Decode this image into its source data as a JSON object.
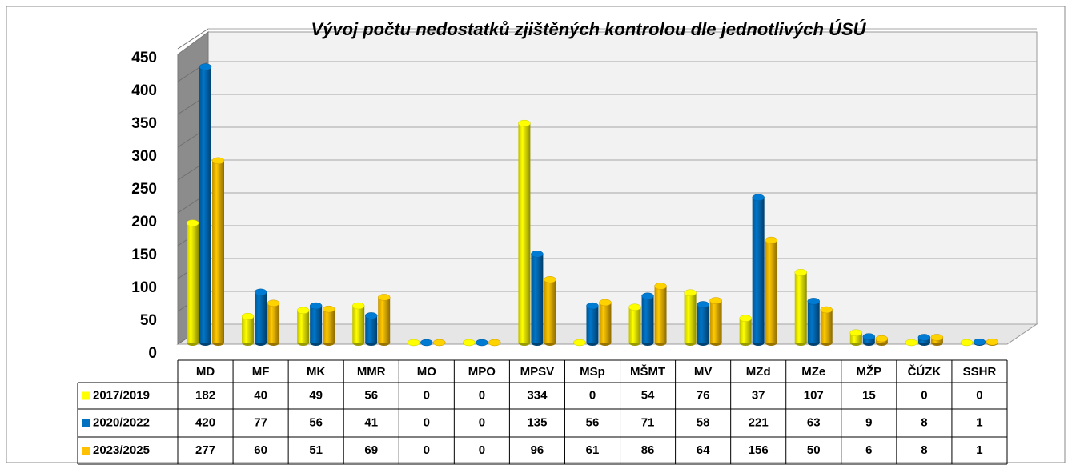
{
  "chart_data": {
    "type": "bar",
    "title": "Vývoj počtu nedostatků zjištěných kontrolou dle jednotlivých ÚSÚ",
    "categories": [
      "MD",
      "MF",
      "MK",
      "MMR",
      "MO",
      "MPO",
      "MPSV",
      "MSp",
      "MŠMT",
      "MV",
      "MZd",
      "MZe",
      "MŽP",
      "ČÚZK",
      "SSHR"
    ],
    "series": [
      {
        "name": "2017/2019",
        "color": "#ffff00",
        "values": [
          182,
          40,
          49,
          56,
          0,
          0,
          334,
          0,
          54,
          76,
          37,
          107,
          15,
          0,
          0
        ]
      },
      {
        "name": "2020/2022",
        "color": "#0070c0",
        "values": [
          420,
          77,
          56,
          41,
          0,
          0,
          135,
          56,
          71,
          58,
          221,
          63,
          9,
          8,
          1
        ]
      },
      {
        "name": "2023/2025",
        "color": "#ffc000",
        "values": [
          277,
          60,
          51,
          69,
          0,
          0,
          96,
          61,
          86,
          64,
          156,
          50,
          6,
          8,
          1
        ]
      }
    ],
    "ylim": [
      0,
      450
    ],
    "yticks": [
      0,
      50,
      100,
      150,
      200,
      250,
      300,
      350,
      400,
      450
    ],
    "grid": true
  }
}
